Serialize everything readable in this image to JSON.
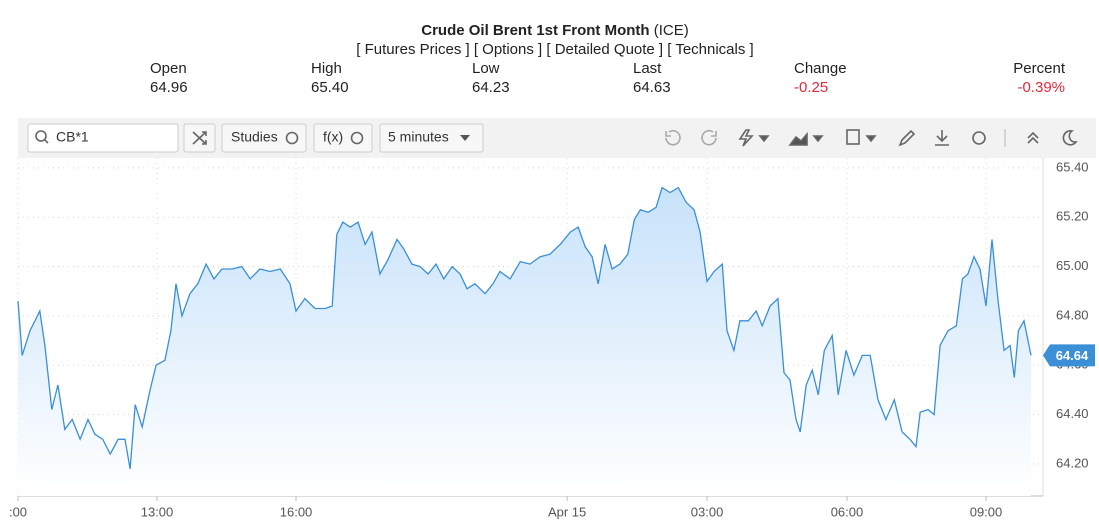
{
  "header": {
    "title": "Crude Oil Brent 1st Front Month",
    "exchange": "(ICE)",
    "nav": "[ Futures Prices ] [ Options ] [ Detailed Quote ] [ Technicals ]"
  },
  "stats": [
    {
      "label": "Open",
      "value": "64.96"
    },
    {
      "label": "High",
      "value": "65.40"
    },
    {
      "label": "Low",
      "value": "64.23"
    },
    {
      "label": "Last",
      "value": "64.63"
    },
    {
      "label": "Change",
      "value": "-0.25"
    },
    {
      "label": "Percent",
      "value": "-0.39%"
    }
  ],
  "toolbar": {
    "symbol": "CB*1",
    "studies": "Studies",
    "function": "f(x)",
    "interval": "5 minutes"
  },
  "chart_data": {
    "type": "area",
    "color": "#3a8fd6",
    "grid": true,
    "x": [
      0,
      0.09,
      0.26,
      0.47,
      0.58,
      0.73,
      0.86,
      1.01,
      1.17,
      1.34,
      1.51,
      1.66,
      1.83,
      1.99,
      2.16,
      2.31,
      2.42,
      2.53,
      2.68,
      2.85,
      2.98,
      3.17,
      3.3,
      3.41,
      3.54,
      3.71,
      3.88,
      4.06,
      4.23,
      4.4,
      4.62,
      4.83,
      5.01,
      5.22,
      5.44,
      5.66,
      5.87,
      6,
      6.19,
      6.41,
      6.63,
      6.78,
      6.88,
      7.01,
      7.17,
      7.34,
      7.49,
      7.64,
      7.81,
      7.99,
      8.18,
      8.33,
      8.5,
      8.68,
      8.85,
      9.02,
      9.19,
      9.37,
      9.54,
      9.69,
      9.86,
      10.08,
      10.25,
      10.4,
      10.62,
      10.84,
      11.05,
      11.27,
      11.48,
      11.7,
      11.92,
      12.09,
      12.24,
      12.39,
      12.52,
      12.67,
      12.82,
      12.99,
      13.16,
      13.3,
      13.43,
      13.6,
      13.77,
      13.9,
      14.07,
      14.25,
      14.42,
      14.59,
      14.72,
      14.87,
      15.02,
      15.2,
      15.3,
      15.45,
      15.58,
      15.76,
      15.93,
      16.06,
      16.23,
      16.4,
      16.53,
      16.66,
      16.79,
      16.88,
      17.01,
      17.14,
      17.27,
      17.4,
      17.57,
      17.7,
      17.87,
      18.04,
      18.22,
      18.39,
      18.56,
      18.73,
      18.91,
      19.08,
      19.25,
      19.38,
      19.47,
      19.64,
      19.77,
      19.9,
      20.07,
      20.25,
      20.38,
      20.5,
      20.63,
      20.76,
      20.89,
      21.02,
      21.15,
      21.28,
      21.41,
      21.5,
      21.59,
      21.71,
      21.86
    ],
    "values": [
      64.86,
      64.64,
      64.74,
      64.82,
      64.68,
      64.42,
      64.52,
      64.34,
      64.38,
      64.3,
      64.38,
      64.32,
      64.3,
      64.24,
      64.3,
      64.3,
      64.18,
      64.44,
      64.35,
      64.5,
      64.6,
      64.62,
      64.74,
      64.93,
      64.8,
      64.89,
      64.93,
      65.01,
      64.95,
      64.99,
      64.99,
      65,
      64.95,
      64.99,
      64.98,
      64.99,
      64.93,
      64.82,
      64.87,
      64.83,
      64.83,
      64.84,
      65.13,
      65.18,
      65.16,
      65.18,
      65.09,
      65.14,
      64.97,
      65.03,
      65.11,
      65.07,
      65.01,
      65,
      64.97,
      65.01,
      64.95,
      65,
      64.97,
      64.91,
      64.93,
      64.89,
      64.93,
      64.98,
      64.95,
      65.02,
      65.01,
      65.04,
      65.05,
      65.09,
      65.14,
      65.16,
      65.08,
      65.04,
      64.93,
      65.09,
      64.99,
      65.01,
      65.05,
      65.19,
      65.23,
      65.22,
      65.24,
      65.32,
      65.3,
      65.32,
      65.26,
      65.23,
      65.14,
      64.94,
      64.98,
      65.01,
      64.74,
      64.66,
      64.78,
      64.78,
      64.82,
      64.76,
      64.84,
      64.87,
      64.57,
      64.54,
      64.38,
      64.33,
      64.52,
      64.58,
      64.48,
      64.66,
      64.72,
      64.48,
      64.66,
      64.56,
      64.64,
      64.64,
      64.46,
      64.38,
      64.46,
      64.33,
      64.3,
      64.27,
      64.41,
      64.42,
      64.4,
      64.68,
      64.74,
      64.76,
      64.95,
      64.97,
      65.04,
      64.99,
      64.84,
      65.11,
      64.86,
      64.66,
      64.68,
      64.55,
      64.74,
      64.78,
      64.64
    ],
    "last_value": 64.64,
    "xlim": [
      0,
      22.12
    ],
    "ylim": [
      64.07,
      65.44
    ],
    "xticks": [
      {
        "value": 0,
        "label": ":00"
      },
      {
        "value": 3,
        "label": "13:00"
      },
      {
        "value": 6,
        "label": "16:00"
      },
      {
        "value": 11.85,
        "label": "Apr 15"
      },
      {
        "value": 14.87,
        "label": "03:00"
      },
      {
        "value": 17.89,
        "label": "06:00"
      },
      {
        "value": 20.89,
        "label": "09:00"
      }
    ],
    "yticks": [
      {
        "value": 65.4,
        "label": "65.40"
      },
      {
        "value": 65.2,
        "label": "65.20"
      },
      {
        "value": 65,
        "label": "65.00"
      },
      {
        "value": 64.8,
        "label": "64.80"
      },
      {
        "value": 64.6,
        "label": "64.60"
      },
      {
        "value": 64.4,
        "label": "64.40"
      },
      {
        "value": 64.2,
        "label": "64.20"
      }
    ]
  }
}
